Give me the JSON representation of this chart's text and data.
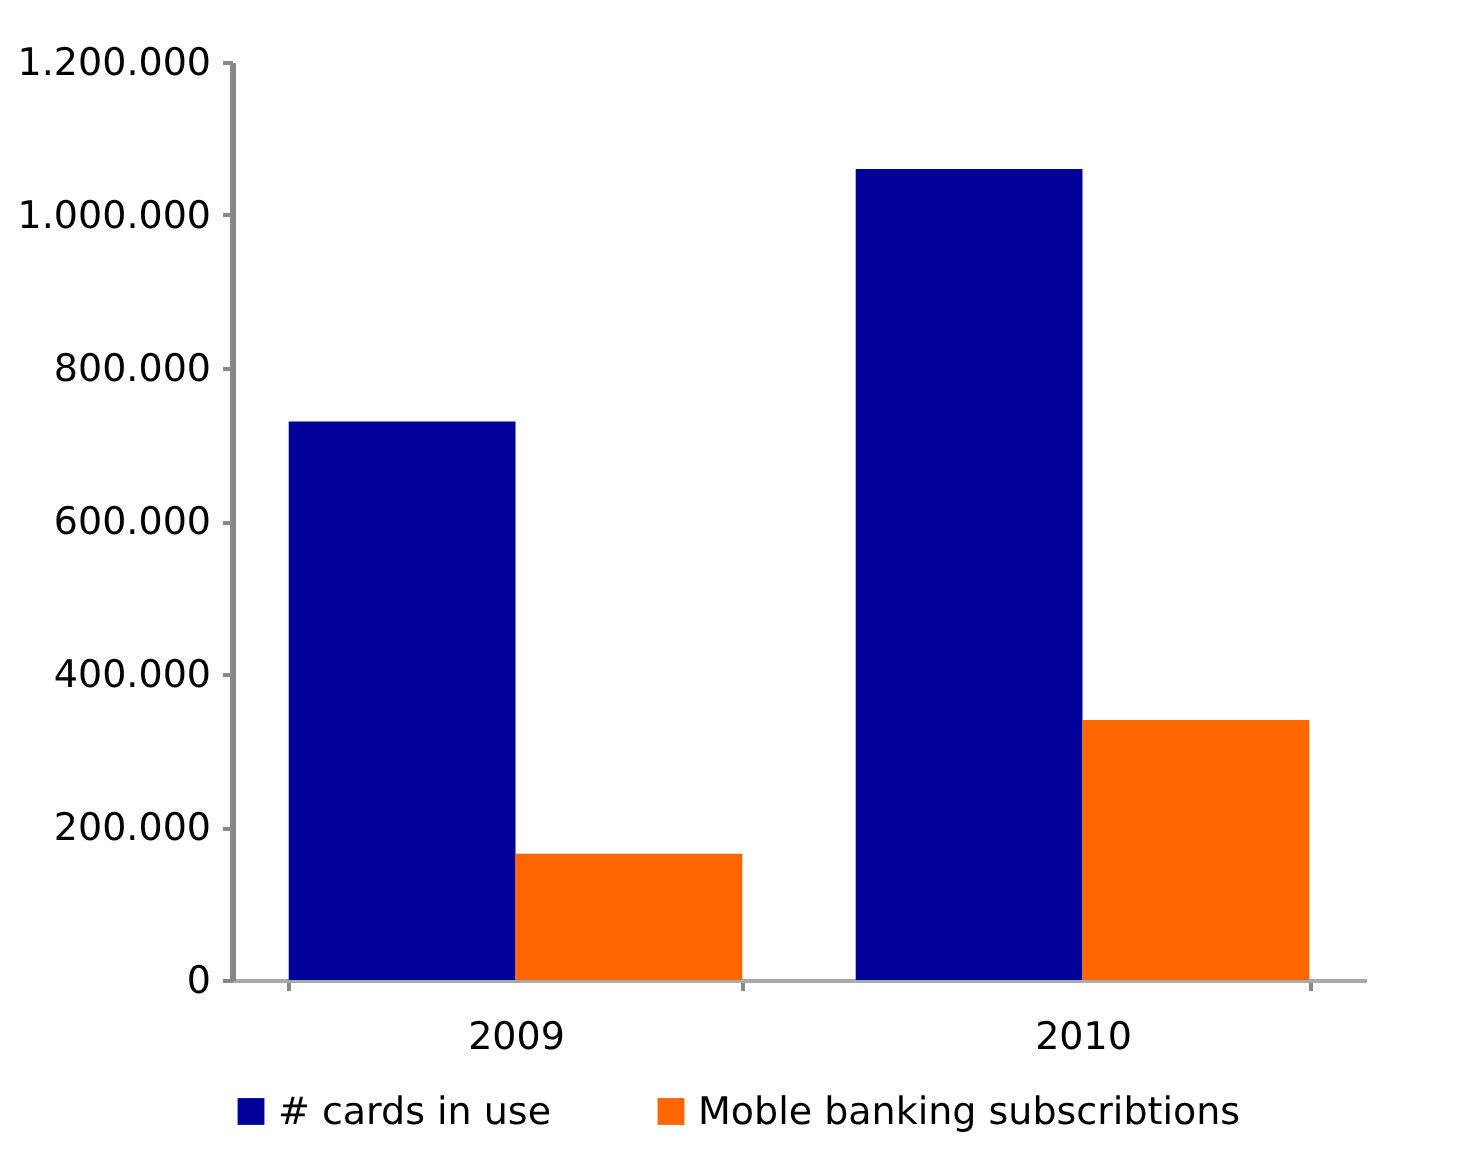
{
  "chart_data": {
    "type": "bar",
    "categories": [
      "2009",
      "2010"
    ],
    "series": [
      {
        "name": "# cards in use",
        "color": "#000099",
        "values": [
          730000,
          1060000
        ]
      },
      {
        "name": "Moble banking subscribtions",
        "color": "#ff6600",
        "values": [
          165000,
          340000
        ]
      }
    ],
    "ylim": [
      0,
      1200000
    ],
    "yticks": [
      {
        "value": 0,
        "label": "0"
      },
      {
        "value": 200000,
        "label": "200.000"
      },
      {
        "value": 400000,
        "label": "400.000"
      },
      {
        "value": 600000,
        "label": "600.000"
      },
      {
        "value": 800000,
        "label": "800.000"
      },
      {
        "value": 1000000,
        "label": "1.000.000"
      },
      {
        "value": 1200000,
        "label": "1.200.000"
      }
    ],
    "legend": "bottom"
  }
}
